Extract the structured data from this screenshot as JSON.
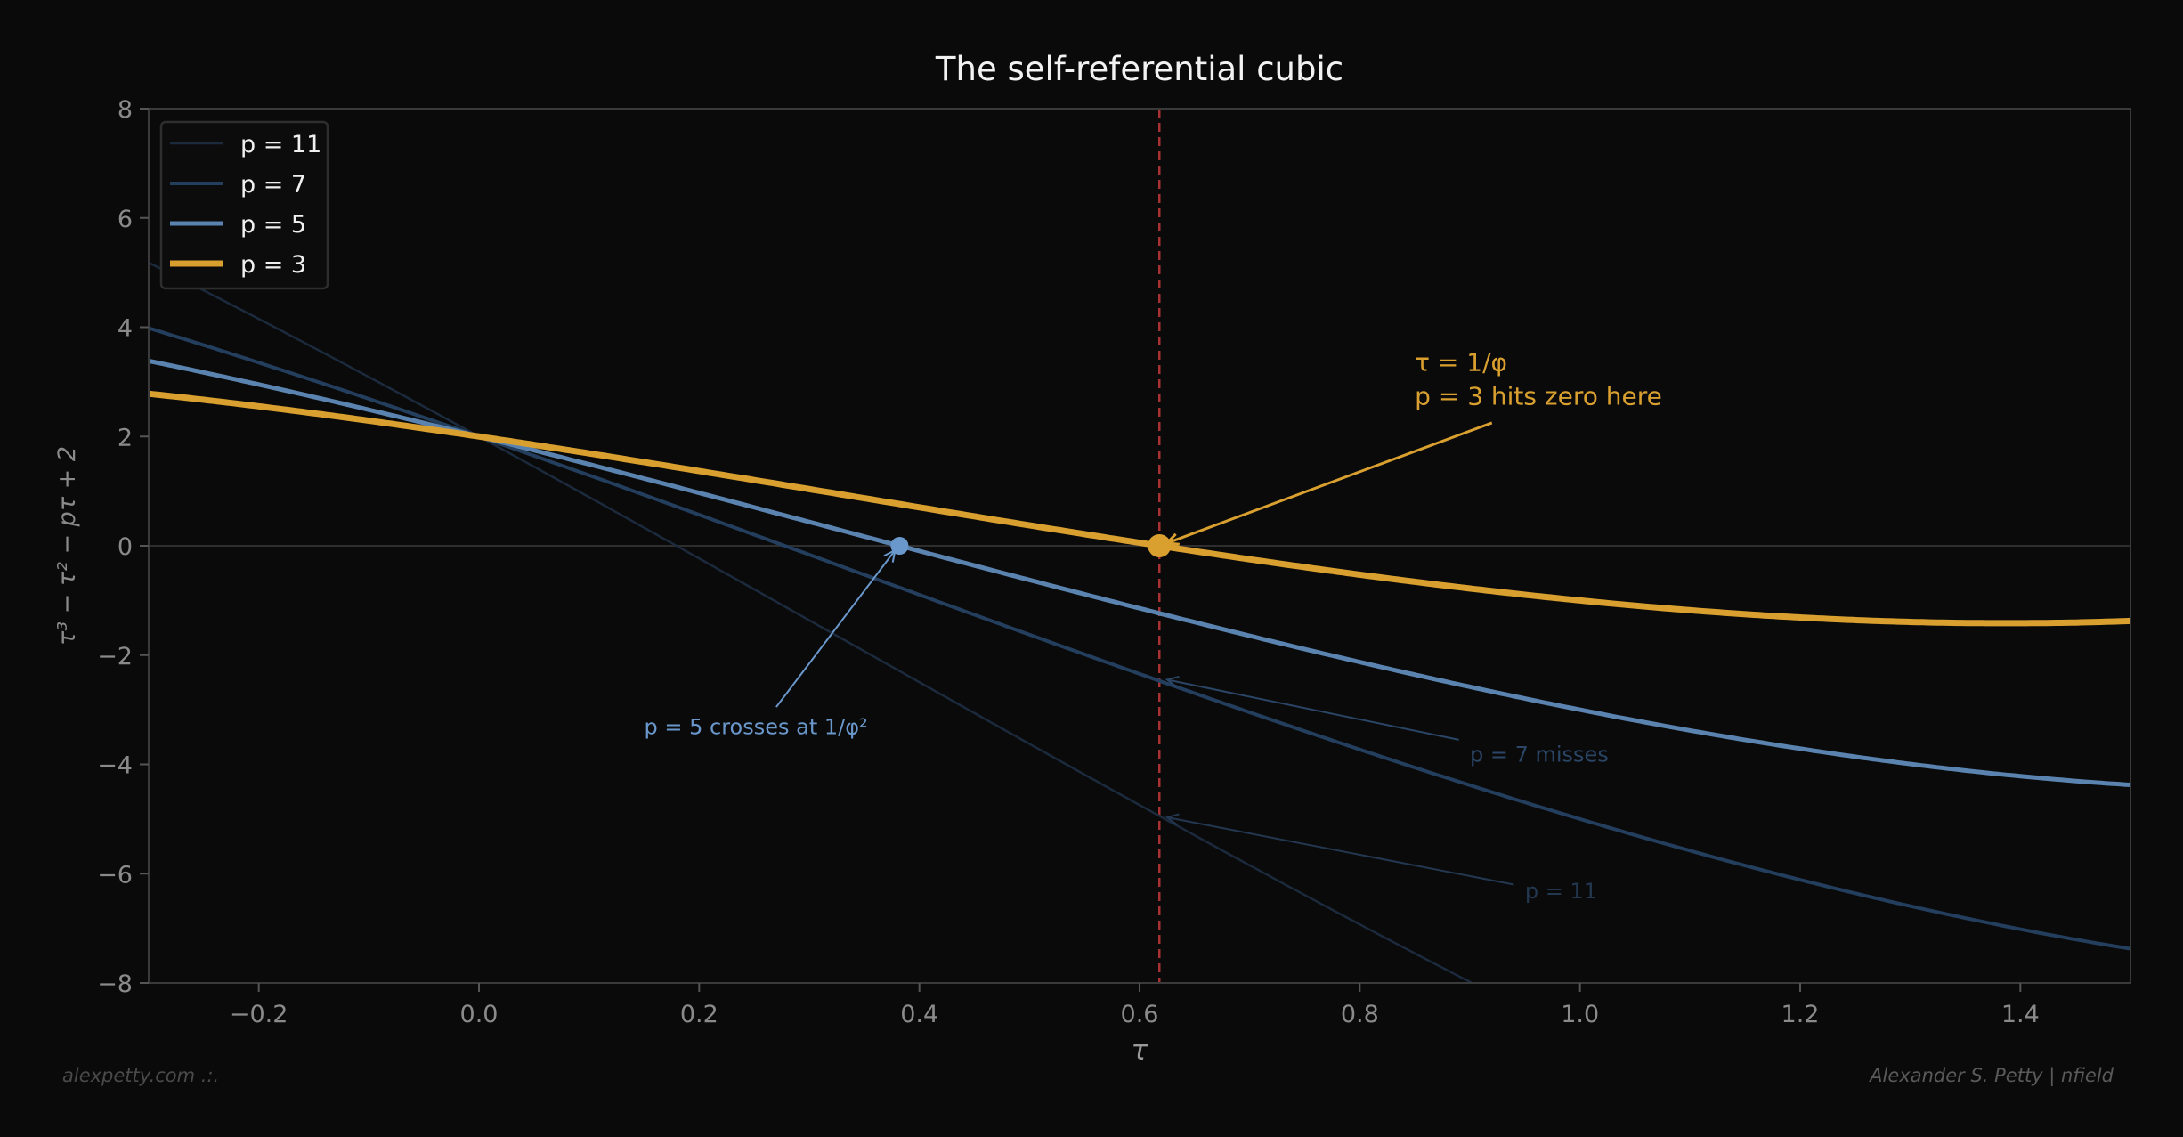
{
  "chart_data": {
    "type": "line",
    "title": "The self-referential cubic",
    "xlabel": "τ",
    "ylabel": "τ³ − τ² − pτ + 2",
    "xlim": [
      -0.3,
      1.5
    ],
    "ylim": [
      -8,
      8
    ],
    "xticks": [
      -0.2,
      0.0,
      0.2,
      0.4,
      0.6,
      0.8,
      1.0,
      1.2,
      1.4
    ],
    "xtick_labels": [
      "−0.2",
      "0.0",
      "0.2",
      "0.4",
      "0.6",
      "0.8",
      "1.0",
      "1.2",
      "1.4"
    ],
    "yticks": [
      -8,
      -6,
      -4,
      -2,
      0,
      2,
      4,
      6,
      8
    ],
    "ytick_labels": [
      "−8",
      "−6",
      "−4",
      "−2",
      "0",
      "2",
      "4",
      "6",
      "8"
    ],
    "grid": false,
    "legend_placement": "top-left",
    "function": "tau^3 - tau^2 - p*tau + 2",
    "series": [
      {
        "name": "p = 11",
        "p": 11,
        "color": "#1c2a3d"
      },
      {
        "name": "p = 7",
        "p": 7,
        "color": "#243e5e"
      },
      {
        "name": "p = 5",
        "p": 5,
        "color": "#5a83b0"
      },
      {
        "name": "p = 3",
        "p": 3,
        "color": "#d9a030"
      }
    ],
    "reference_lines": {
      "vertical_x": 0.618,
      "vertical_color": "#a83232",
      "horizontal_y": 0
    },
    "points": [
      {
        "x": 0.382,
        "y": 0,
        "color": "#6a98cc"
      },
      {
        "x": 0.618,
        "y": 0,
        "color": "#d9a030"
      }
    ],
    "annotations": [
      {
        "lines": [
          "τ = 1/φ",
          "p = 3 hits zero here"
        ],
        "color": "#d9a030",
        "text_xy": [
          0.85,
          3.2
        ],
        "arrow_from": [
          0.92,
          2.25
        ],
        "arrow_to": [
          0.625,
          0.05
        ]
      },
      {
        "lines": [
          "p = 5 crosses at 1/φ²"
        ],
        "color": "#6a98cc",
        "text_xy": [
          0.15,
          -3.45
        ],
        "arrow_from": [
          0.27,
          -2.95
        ],
        "arrow_to": [
          0.378,
          -0.08
        ]
      },
      {
        "lines": [
          "p = 7 misses"
        ],
        "color": "#2a4565",
        "text_xy": [
          0.9,
          -3.95
        ],
        "arrow_from": [
          0.89,
          -3.55
        ],
        "arrow_to": [
          0.625,
          -2.45
        ]
      },
      {
        "lines": [
          "p = 11"
        ],
        "color": "#233750",
        "text_xy": [
          0.95,
          -6.45
        ],
        "arrow_from": [
          0.94,
          -6.2
        ],
        "arrow_to": [
          0.625,
          -4.97
        ]
      }
    ]
  },
  "footer": {
    "left": "alexpetty.com  .:.",
    "right": "Alexander S. Petty  |  nfield"
  }
}
